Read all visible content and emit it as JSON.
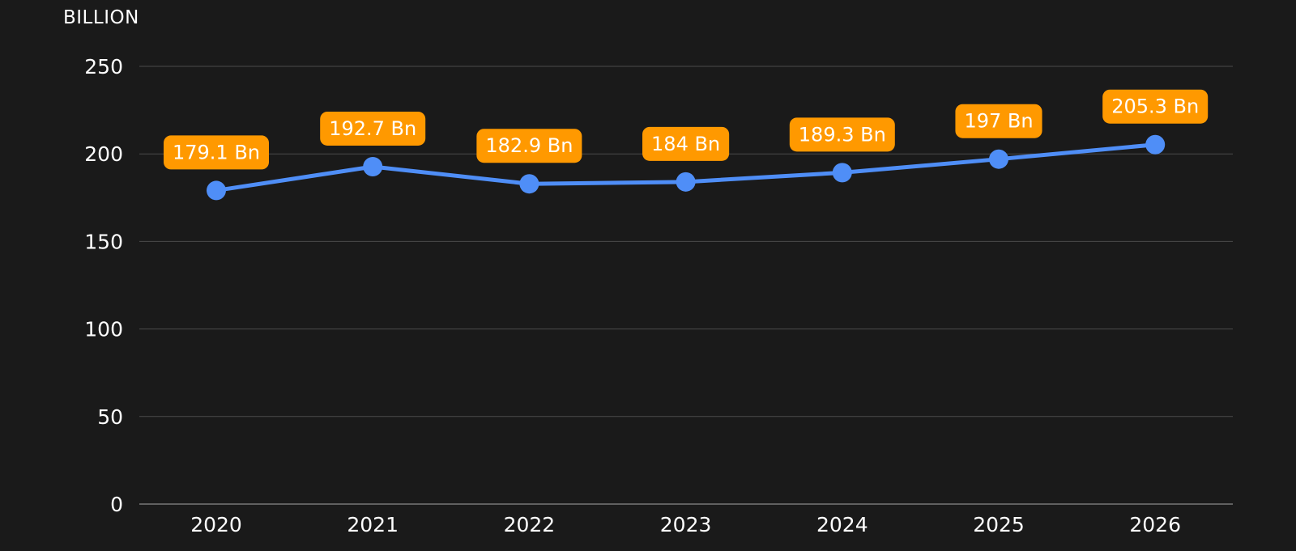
{
  "chart_data": {
    "type": "line",
    "title": "",
    "xlabel": "",
    "ylabel": "BILLION",
    "categories": [
      "2020",
      "2021",
      "2022",
      "2023",
      "2024",
      "2025",
      "2026"
    ],
    "series": [
      {
        "values": [
          179.1,
          192.7,
          182.9,
          184,
          189.3,
          197,
          205.3
        ],
        "data_labels": [
          "179.1 Bn",
          "192.7 Bn",
          "182.9 Bn",
          "184 Bn",
          "189.3 Bn",
          "197 Bn",
          "205.3 Bn"
        ]
      }
    ],
    "ylim": [
      0,
      250
    ],
    "yticks": [
      "0",
      "50",
      "100",
      "150",
      "200",
      "250"
    ],
    "grid": true,
    "legend": "none",
    "colors": {
      "background": "#1a1a1a",
      "line": "#4f8ef7",
      "marker": "#4f8ef7",
      "label_bg": "#ff9900",
      "label_text": "#ffffff",
      "text": "#ffffff",
      "grid": "#4a4a4a"
    }
  }
}
